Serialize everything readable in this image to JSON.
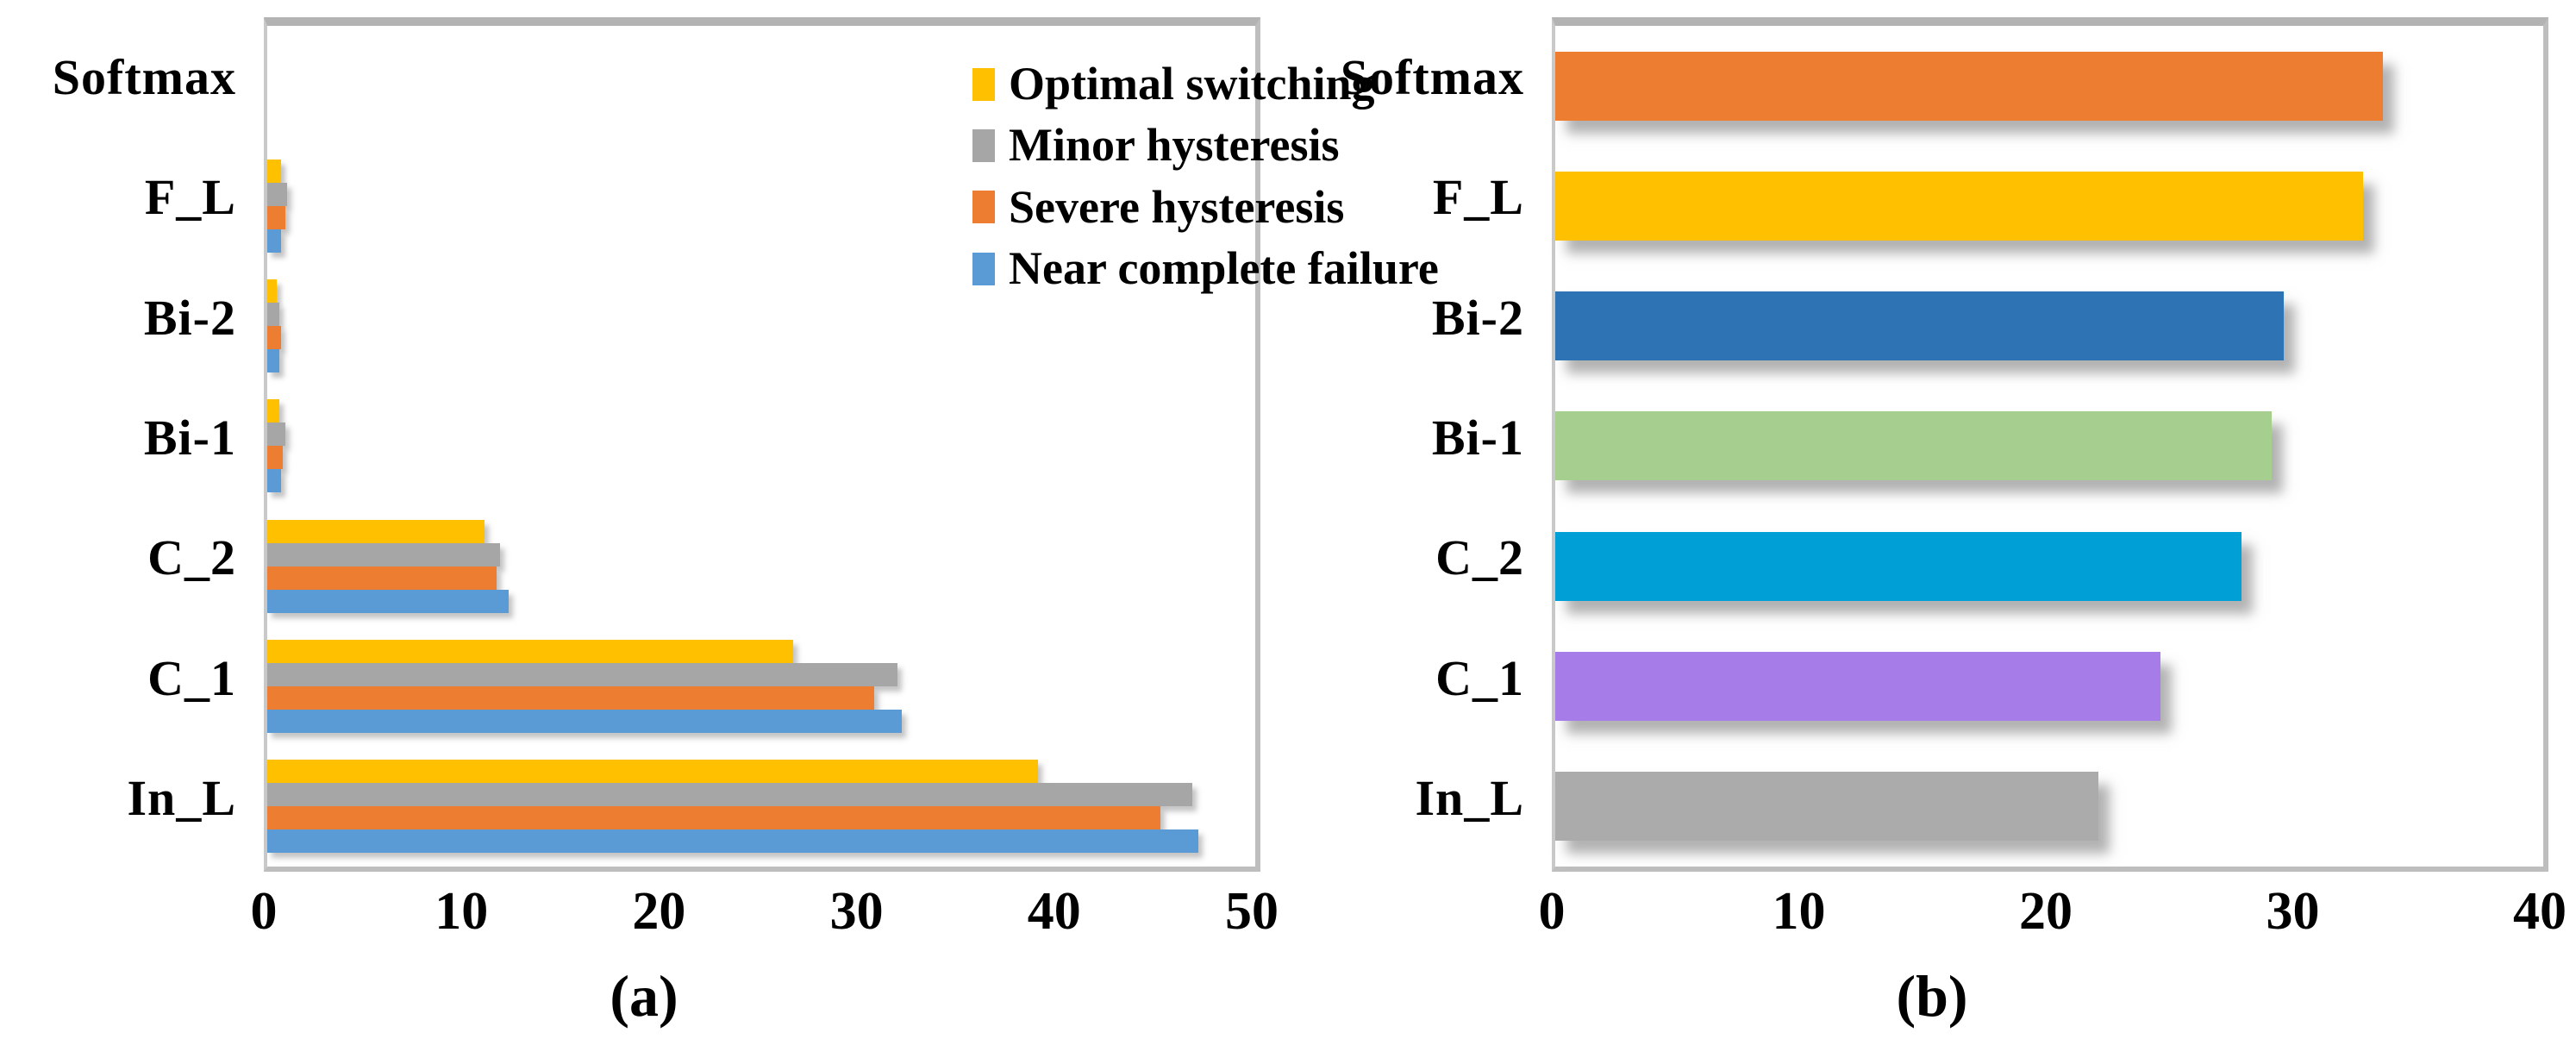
{
  "figure_background": "#FFFFFF",
  "chart_data": [
    {
      "type": "bar",
      "orientation": "horizontal",
      "caption": "(a)",
      "categories": [
        "Softmax",
        "F_L",
        "Bi-2",
        "Bi-1",
        "C_2",
        "C_1",
        "In_L"
      ],
      "series": [
        {
          "name": "Optimal switching",
          "color": "#FFC000",
          "values": [
            0,
            0.7,
            0.5,
            0.6,
            11.0,
            26.6,
            39.0
          ]
        },
        {
          "name": "Minor hysteresis",
          "color": "#A6A6A6",
          "values": [
            0,
            1.0,
            0.6,
            0.9,
            11.8,
            31.9,
            46.8
          ]
        },
        {
          "name": "Severe hysteresis",
          "color": "#ED7D31",
          "values": [
            0,
            0.9,
            0.7,
            0.8,
            11.6,
            30.7,
            45.2
          ]
        },
        {
          "name": "Near complete failure",
          "color": "#5B9BD5",
          "values": [
            0,
            0.7,
            0.6,
            0.7,
            12.2,
            32.1,
            47.1
          ]
        }
      ],
      "xlim": [
        0,
        50
      ],
      "xticks": [
        0,
        10,
        20,
        30,
        40,
        50
      ],
      "grid": false,
      "legend_position": "top-right-inside"
    },
    {
      "type": "bar",
      "orientation": "horizontal",
      "caption": "(b)",
      "categories": [
        "Softmax",
        "F_L",
        "Bi-2",
        "Bi-1",
        "C_2",
        "C_1",
        "In_L"
      ],
      "values": [
        33.5,
        32.7,
        29.5,
        29.0,
        27.8,
        24.5,
        22.0
      ],
      "colors": [
        "#ED7D31",
        "#FFC000",
        "#2E74B5",
        "#A6CE8E",
        "#009FD6",
        "#A57CE8",
        "#ABABAB"
      ],
      "xlim": [
        0,
        40
      ],
      "xticks": [
        0,
        10,
        20,
        30,
        40
      ],
      "grid": false,
      "legend_position": "none"
    }
  ]
}
